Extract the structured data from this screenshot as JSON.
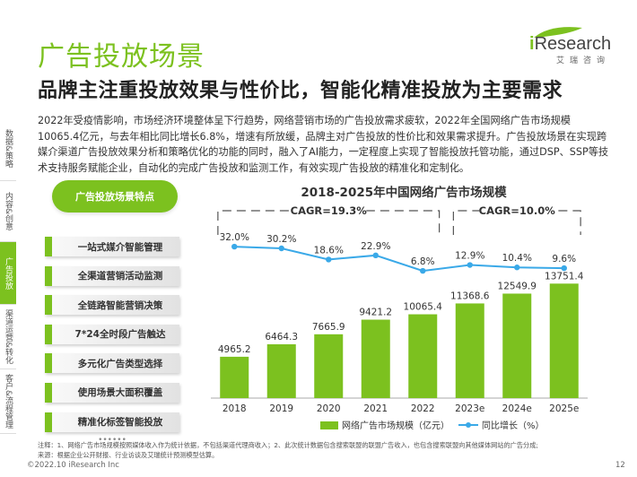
{
  "page_title": "广告投放场景",
  "subtitle": "品牌主注重投放效果与性价比，智能化精准投放为主要需求",
  "logo": {
    "brand": "Research",
    "tagline": "艾瑞咨询",
    "accent": "#7cc11f"
  },
  "intro": "2022年受疫情影响，市场经济环境整体呈下行趋势，网络营销市场的广告投放需求疲软，2022年全国网络广告市场规模10065.4亿元，与去年相比同比增长6.8%，增速有所放缓，品牌主对广告投放的性价比和效果需求提升。广告投放场景在实现跨媒介渠道广告投放效果分析和策略优化的功能的同时，融入了AI能力，一定程度上实现了智能投放托管功能，通过DSP、SSP等技术支持服务赋能企业，自动化的完成广告投放和监测工作，有效实现广告投放的精准化和定制化。",
  "side_tabs": [
    {
      "label": "数据&策略",
      "active": false
    },
    {
      "label": "内容&创意",
      "active": false
    },
    {
      "label": "广告投放",
      "active": true
    },
    {
      "label": "渠道运营&转化",
      "active": false
    },
    {
      "label": "客户&流程管理",
      "active": false
    }
  ],
  "features": {
    "header": "广告投放场景特点",
    "items": [
      "一站式媒介智能管理",
      "全渠道营销活动监测",
      "全链路智能营销决策",
      "7*24全时段广告触达",
      "多元化广告类型选择",
      "使用场景大面积覆盖",
      "精准化标签智能投放"
    ],
    "more": "••••••"
  },
  "chart_data": {
    "type": "bar",
    "title": "2018-2025年中国网络广告市场规模",
    "categories": [
      "2018",
      "2019",
      "2020",
      "2021",
      "2022",
      "2023e",
      "2024e",
      "2025e"
    ],
    "series": [
      {
        "name": "网络广告市场规模（亿元）",
        "type": "bar",
        "values": [
          4965.2,
          6464.3,
          7665.9,
          9421.2,
          10065.4,
          11368.6,
          12549.9,
          13751.4
        ],
        "value_labels": [
          "4965.2",
          "6464.3",
          "7665.9",
          "9421.2",
          "10065.4",
          "11368.6",
          "12549.9",
          "13751.4"
        ]
      },
      {
        "name": "同比增长（%）",
        "type": "line",
        "values": [
          32.0,
          30.2,
          18.6,
          22.9,
          6.8,
          12.9,
          10.4,
          9.6
        ],
        "value_labels": [
          "32.0%",
          "30.2%",
          "18.6%",
          "22.9%",
          "6.8%",
          "12.9%",
          "10.4%",
          "9.6%"
        ]
      }
    ],
    "annotations": [
      {
        "text": "CAGR=19.3%",
        "span": [
          "2018",
          "2022"
        ]
      },
      {
        "text": "CAGR=10.0%",
        "span": [
          "2023e",
          "2025e"
        ]
      }
    ],
    "legend_position": "bottom",
    "colors": {
      "bar": "#7cc11f",
      "line": "#3aa9e8"
    }
  },
  "note": "注释：1、网络广告市场规模按照媒体收入作为统计依据，不包括渠道代理商收入；2、此次统计数据包含搜索联盟的联盟广告收入，也包含搜索联盟向其他媒体网站的广告分成;",
  "source": "来源：根据企业公开财报、行业访谈及艾瑞统计预测模型估算。",
  "footer": {
    "copyright": "©2022.10 iResearch Inc",
    "page_number": "12"
  }
}
